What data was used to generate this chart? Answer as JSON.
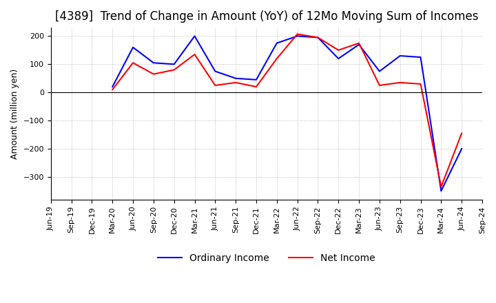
{
  "title": "[4389]  Trend of Change in Amount (YoY) of 12Mo Moving Sum of Incomes",
  "ylabel": "Amount (million yen)",
  "ylim": [
    -380,
    230
  ],
  "yticks": [
    200,
    100,
    0,
    -100,
    -200,
    -300
  ],
  "x_labels": [
    "Jun-19",
    "Sep-19",
    "Dec-19",
    "Mar-20",
    "Jun-20",
    "Sep-20",
    "Dec-20",
    "Mar-21",
    "Jun-21",
    "Sep-21",
    "Dec-21",
    "Mar-22",
    "Jun-22",
    "Sep-22",
    "Dec-22",
    "Mar-23",
    "Jun-23",
    "Sep-23",
    "Dec-23",
    "Mar-24",
    "Jun-24",
    "Sep-24"
  ],
  "ordinary_income": [
    null,
    null,
    null,
    20,
    160,
    105,
    100,
    200,
    75,
    50,
    45,
    175,
    200,
    195,
    120,
    170,
    75,
    130,
    125,
    -350,
    -200,
    null
  ],
  "net_income": [
    null,
    null,
    null,
    10,
    105,
    65,
    80,
    135,
    25,
    35,
    20,
    120,
    207,
    195,
    150,
    175,
    25,
    35,
    30,
    -335,
    -145,
    null
  ],
  "ordinary_color": "#0000ff",
  "net_color": "#ff0000",
  "grid_color": "#aaaaaa",
  "background_color": "#ffffff",
  "title_fontsize": 12,
  "label_fontsize": 9,
  "tick_fontsize": 8
}
